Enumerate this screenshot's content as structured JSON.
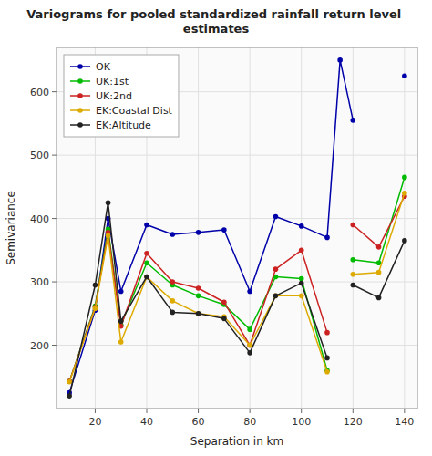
{
  "chart_data": {
    "type": "line",
    "title": "Variograms for pooled standardized rainfall return level estimates",
    "x_label": "Separation in km",
    "y_label": "Semivariance",
    "x": [
      10,
      20,
      25,
      30,
      40,
      50,
      60,
      70,
      80,
      90,
      100,
      110,
      115,
      120,
      130,
      140
    ],
    "series": [
      {
        "name": "OK",
        "color": "#0000aa",
        "values": [
          125,
          255,
          400,
          285,
          390,
          375,
          378,
          382,
          285,
          403,
          388,
          370,
          650,
          555,
          null,
          625
        ]
      },
      {
        "name": "UK:1st",
        "color": "#00bb00",
        "values": [
          143,
          262,
          383,
          232,
          330,
          295,
          278,
          264,
          225,
          308,
          305,
          160,
          null,
          335,
          330,
          465
        ]
      },
      {
        "name": "UK:2nd",
        "color": "#cc2222",
        "values": [
          143,
          260,
          378,
          230,
          345,
          300,
          290,
          268,
          200,
          320,
          350,
          220,
          null,
          390,
          355,
          435
        ]
      },
      {
        "name": "EK:Coastal Dist",
        "color": "#ddaa00",
        "values": [
          142,
          258,
          373,
          205,
          308,
          270,
          250,
          245,
          200,
          278,
          278,
          158,
          null,
          312,
          315,
          440
        ]
      },
      {
        "name": "EK:Altitude",
        "color": "#222222",
        "values": [
          120,
          295,
          425,
          238,
          308,
          252,
          250,
          242,
          188,
          278,
          298,
          180,
          null,
          295,
          275,
          365
        ]
      }
    ],
    "xlim": [
      5,
      145
    ],
    "ylim": [
      100,
      670
    ],
    "xticks": [
      20,
      40,
      60,
      80,
      100,
      120,
      140
    ],
    "yticks": [
      200,
      300,
      400,
      500,
      600
    ],
    "grid": true,
    "legend": "upper left",
    "marker": "circle"
  }
}
